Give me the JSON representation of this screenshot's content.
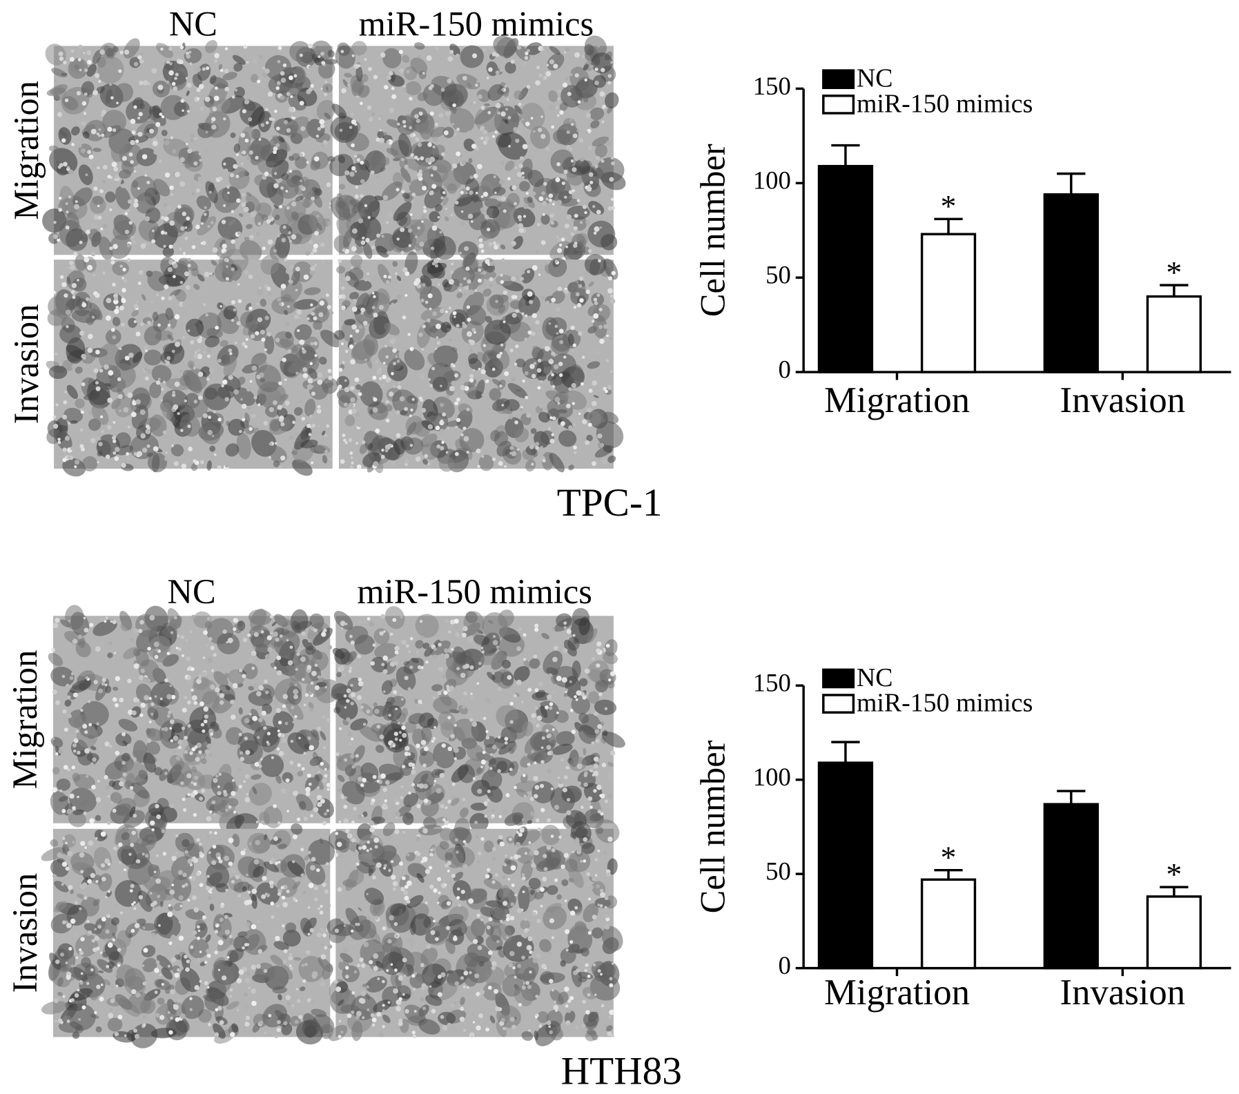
{
  "chart_data": [
    {
      "type": "bar",
      "ylabel": "Cell number",
      "categories": [
        "Migration",
        "Invasion"
      ],
      "series": [
        {
          "name": "NC",
          "color": "#000000",
          "values": [
            109,
            94
          ],
          "errors": [
            11,
            11
          ]
        },
        {
          "name": "miR-150 mimics",
          "color": "#ffffff",
          "values": [
            73,
            40
          ],
          "errors": [
            8,
            6
          ],
          "significance": [
            "*",
            "*"
          ]
        }
      ],
      "ylim": [
        0,
        150
      ],
      "yticks": [
        0,
        50,
        100,
        150
      ],
      "legend": "top-left"
    },
    {
      "type": "bar",
      "ylabel": "Cell number",
      "categories": [
        "Migration",
        "Invasion"
      ],
      "series": [
        {
          "name": "NC",
          "color": "#000000",
          "values": [
            109,
            87
          ],
          "errors": [
            11,
            7
          ]
        },
        {
          "name": "miR-150 mimics",
          "color": "#ffffff",
          "values": [
            47,
            38
          ],
          "errors": [
            5,
            5
          ],
          "significance": [
            "*",
            "*"
          ]
        }
      ],
      "ylim": [
        0,
        150
      ],
      "yticks": [
        0,
        50,
        100,
        150
      ],
      "legend": "top-left"
    }
  ],
  "panels": [
    {
      "columns": [
        "NC",
        "miR-150 mimics"
      ],
      "rows": [
        "Migration",
        "Invasion"
      ],
      "cell_line": "TPC-1"
    },
    {
      "columns": [
        "NC",
        "miR-150 mimics"
      ],
      "rows": [
        "Migration",
        "Invasion"
      ],
      "cell_line": "HTH83"
    }
  ]
}
